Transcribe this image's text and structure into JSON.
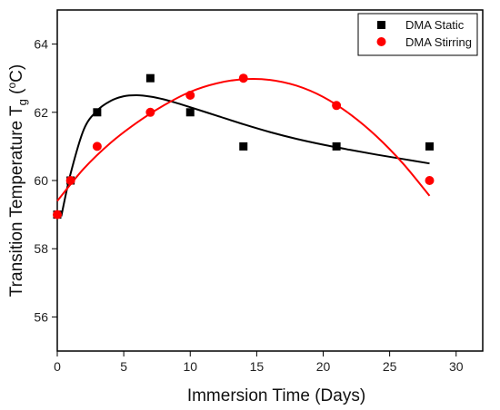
{
  "chart_data": {
    "type": "scatter",
    "xlabel": "Immersion Time (Days)",
    "ylabel": "Transition Temperature T",
    "ylabel_subscript": "g",
    "ylabel_unit": " (",
    "ylabel_degree": "o",
    "ylabel_unit_end": "C)",
    "xlim": [
      0,
      32
    ],
    "ylim": [
      55,
      65
    ],
    "xticks": [
      "0",
      "5",
      "10",
      "15",
      "20",
      "25",
      "30"
    ],
    "yticks": [
      "56",
      "58",
      "60",
      "62",
      "64"
    ],
    "legend_position": "top-right",
    "series": [
      {
        "name": "DMA Static",
        "marker": "square",
        "color": "#000000",
        "x": [
          0,
          1,
          3,
          7,
          10,
          14,
          21,
          28
        ],
        "y": [
          59,
          60,
          62,
          63,
          62,
          61,
          61,
          61
        ],
        "fit_x": [
          0.3,
          1,
          2,
          3,
          4,
          5,
          6,
          7,
          8,
          9,
          10,
          12,
          14,
          16,
          18,
          20,
          22,
          24,
          26,
          28
        ],
        "fit_y": [
          58.95,
          60.2,
          61.5,
          62.05,
          62.33,
          62.47,
          62.5,
          62.46,
          62.38,
          62.27,
          62.15,
          61.9,
          61.65,
          61.42,
          61.22,
          61.05,
          60.9,
          60.76,
          60.63,
          60.5
        ]
      },
      {
        "name": "DMA Stirring",
        "marker": "circle",
        "color": "#ff0000",
        "x": [
          0,
          1,
          3,
          7,
          10,
          14,
          21,
          28
        ],
        "y": [
          59,
          60,
          61,
          62,
          62.5,
          63,
          62.2,
          60
        ],
        "fit_x": [
          0,
          2,
          4,
          6,
          8,
          10,
          12,
          14,
          16,
          18,
          20,
          22,
          24,
          26,
          28
        ],
        "fit_y": [
          59.4,
          60.35,
          61.1,
          61.7,
          62.2,
          62.6,
          62.85,
          62.97,
          62.95,
          62.78,
          62.45,
          61.95,
          61.3,
          60.5,
          59.55
        ]
      }
    ]
  }
}
